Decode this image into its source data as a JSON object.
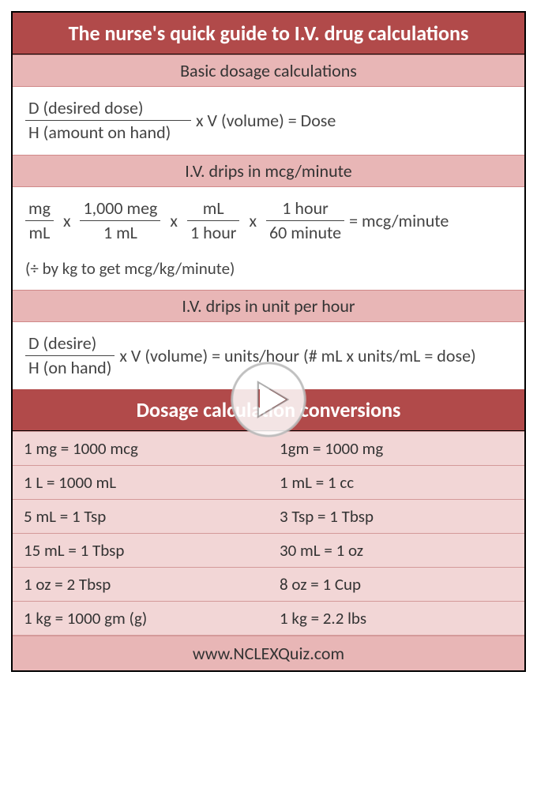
{
  "colors": {
    "header_bg": "#b14a4a",
    "header_text": "#ffffff",
    "subheader_bg": "#e8b6b6",
    "row_bg": "#f2d6d6",
    "border": "#d49a9a",
    "text": "#444444"
  },
  "title": "The nurse's quick guide to I.V. drug calculations",
  "section1": {
    "heading": "Basic dosage calculations",
    "frac_num": "D (desired dose)",
    "frac_den": "H (amount on hand)",
    "tail": "x  V (volume) = Dose"
  },
  "section2": {
    "heading": "I.V. drips in mcg/minute",
    "f1_num": "mg",
    "f1_den": "mL",
    "f2_num": "1,000 meg",
    "f2_den": "1 mL",
    "f3_num": "mL",
    "f3_den": "1 hour",
    "f4_num": "1 hour",
    "f4_den": "60 minute",
    "result": "= mcg/minute",
    "note": "(÷ by kg to get mcg/kg/minute)"
  },
  "section3": {
    "heading": "I.V. drips in unit per hour",
    "frac_num": "D (desire)",
    "frac_den": "H (on hand)",
    "tail": "x V (volume) = units/hour (# mL x units/mL = dose)"
  },
  "conversions": {
    "heading": "Dosage calculation conversions",
    "rows": [
      [
        "1 mg = 1000 mcg",
        "1gm = 1000 mg"
      ],
      [
        "1 L = 1000 mL",
        "1 mL = 1 cc"
      ],
      [
        "5 mL = 1 Tsp",
        "3 Tsp = 1 Tbsp"
      ],
      [
        "15 mL = 1 Tbsp",
        "30 mL = 1 oz"
      ],
      [
        "1 oz = 2 Tbsp",
        "8 oz = 1 Cup"
      ],
      [
        "1 kg = 1000 gm (g)",
        "1 kg = 2.2 lbs"
      ]
    ]
  },
  "footer": "www.NCLEXQuiz.com",
  "times": "x"
}
